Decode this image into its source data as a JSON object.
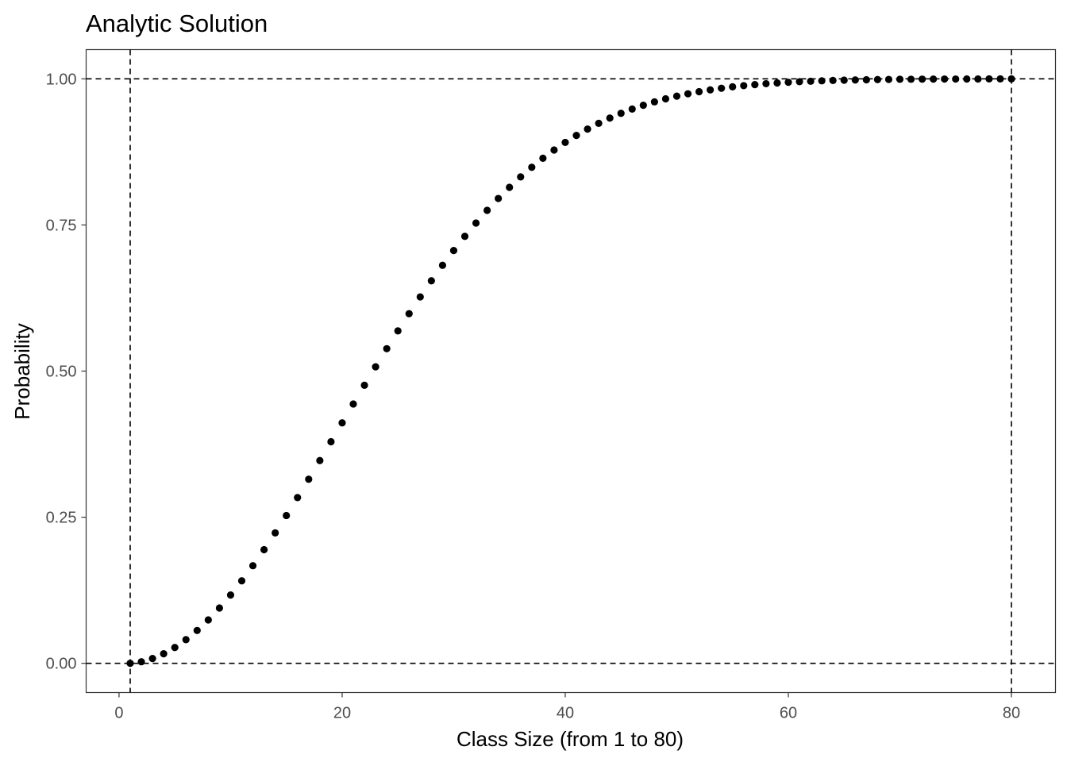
{
  "chart_data": {
    "type": "scatter",
    "title": "Analytic Solution",
    "xlabel": "Class Size (from 1 to 80)",
    "ylabel": "Probability",
    "xlim": [
      -2.95,
      83.95
    ],
    "ylim": [
      -0.05,
      1.05
    ],
    "x_ticks": [
      0,
      20,
      40,
      60,
      80
    ],
    "x_tick_labels": [
      "0",
      "20",
      "40",
      "60",
      "80"
    ],
    "y_ticks": [
      0,
      0.25,
      0.5,
      0.75,
      1
    ],
    "y_tick_labels": [
      "0.00",
      "0.25",
      "0.50",
      "0.75",
      "1.00"
    ],
    "reference_lines": {
      "vertical": [
        1,
        80
      ],
      "horizontal": [
        0,
        1
      ],
      "style": "dashed"
    },
    "grid": false,
    "x": [
      1,
      2,
      3,
      4,
      5,
      6,
      7,
      8,
      9,
      10,
      11,
      12,
      13,
      14,
      15,
      16,
      17,
      18,
      19,
      20,
      21,
      22,
      23,
      24,
      25,
      26,
      27,
      28,
      29,
      30,
      31,
      32,
      33,
      34,
      35,
      36,
      37,
      38,
      39,
      40,
      41,
      42,
      43,
      44,
      45,
      46,
      47,
      48,
      49,
      50,
      51,
      52,
      53,
      54,
      55,
      56,
      57,
      58,
      59,
      60,
      61,
      62,
      63,
      64,
      65,
      66,
      67,
      68,
      69,
      70,
      71,
      72,
      73,
      74,
      75,
      76,
      77,
      78,
      79,
      80
    ],
    "y": [
      0,
      0.0027,
      0.0082,
      0.0164,
      0.0271,
      0.0405,
      0.0562,
      0.0743,
      0.0946,
      0.1169,
      0.1411,
      0.167,
      0.1944,
      0.2231,
      0.2529,
      0.2836,
      0.315,
      0.3469,
      0.3791,
      0.4114,
      0.4437,
      0.4757,
      0.5073,
      0.5383,
      0.5687,
      0.5982,
      0.6269,
      0.6545,
      0.681,
      0.7063,
      0.7305,
      0.7533,
      0.775,
      0.7953,
      0.8144,
      0.8322,
      0.8487,
      0.8641,
      0.8782,
      0.8912,
      0.9032,
      0.914,
      0.9239,
      0.9329,
      0.941,
      0.9483,
      0.9548,
      0.9606,
      0.9658,
      0.9704,
      0.9744,
      0.978,
      0.9811,
      0.9839,
      0.9863,
      0.9883,
      0.9901,
      0.9917,
      0.993,
      0.9941,
      0.9951,
      0.9959,
      0.9966,
      0.9972,
      0.9977,
      0.9981,
      0.9984,
      0.9987,
      0.999,
      0.9992,
      0.9993,
      0.9995,
      0.9996,
      0.9997,
      0.9997,
      0.9998,
      0.9998,
      0.9999,
      0.9999,
      0.9999
    ]
  }
}
